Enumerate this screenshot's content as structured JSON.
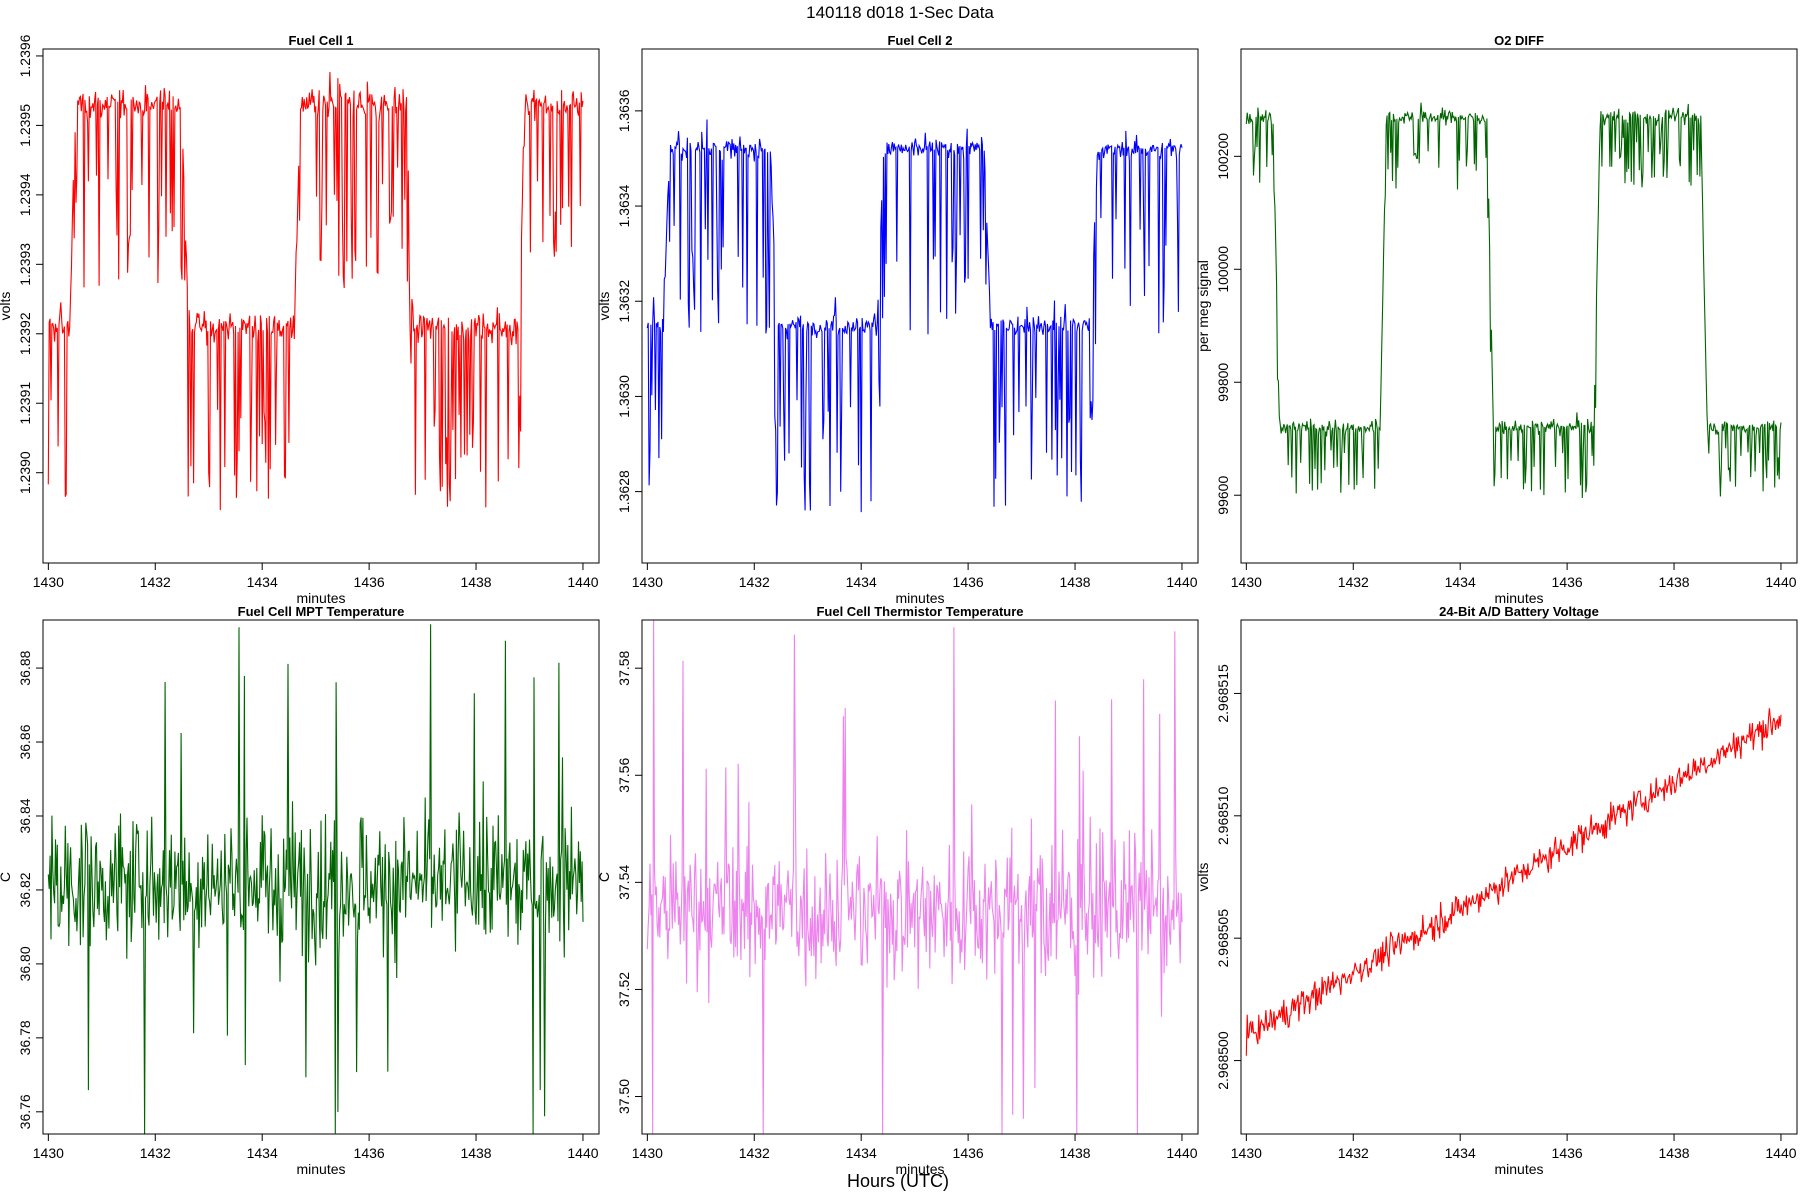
{
  "figure": {
    "title": "140118   d018   1-Sec Data",
    "outer_xlabel": "Hours (UTC)"
  },
  "chart_data": [
    {
      "type": "line",
      "title": "Fuel Cell 1",
      "xlabel": "minutes",
      "ylabel": "volts",
      "xlim": [
        1429.9,
        1440.3
      ],
      "ylim": [
        1.23887,
        1.23961
      ],
      "xticks": [
        1430,
        1432,
        1434,
        1436,
        1438,
        1440
      ],
      "yticks": [
        1.239,
        1.2391,
        1.2392,
        1.2393,
        1.2394,
        1.2395,
        1.2396
      ],
      "ytick_labels": [
        "1.2390",
        "1.2391",
        "1.2392",
        "1.2393",
        "1.2394",
        "1.2395",
        "1.2396"
      ],
      "color": "#ff0000",
      "pattern": {
        "kind": "square",
        "period": 4.2,
        "phase": 1430.4,
        "low": 1.23921,
        "high": 1.23953,
        "spike_amp": 0.00026,
        "noise": 2e-05
      }
    },
    {
      "type": "line",
      "title": "Fuel Cell 2",
      "xlabel": "minutes",
      "ylabel": "volts",
      "xlim": [
        1429.9,
        1440.3
      ],
      "ylim": [
        1.36265,
        1.36373
      ],
      "xticks": [
        1430,
        1432,
        1434,
        1436,
        1438,
        1440
      ],
      "yticks": [
        1.3628,
        1.363,
        1.3632,
        1.3634,
        1.3636
      ],
      "ytick_labels": [
        "1.3628",
        "1.3630",
        "1.3632",
        "1.3634",
        "1.3636"
      ],
      "color": "#0000ff",
      "pattern": {
        "kind": "square",
        "period": 4.0,
        "phase": 1430.3,
        "low": 1.36315,
        "high": 1.36352,
        "spike_amp": 0.0004,
        "noise": 2e-05
      }
    },
    {
      "type": "line",
      "title": "O2 DIFF",
      "xlabel": "minutes",
      "ylabel": "per meg signal",
      "xlim": [
        1429.9,
        1440.3
      ],
      "ylim": [
        99480,
        100390
      ],
      "xticks": [
        1430,
        1432,
        1434,
        1436,
        1438,
        1440
      ],
      "yticks": [
        99600,
        99800,
        100000,
        100200
      ],
      "ytick_labels": [
        "99600",
        "99800",
        "100000",
        "100200"
      ],
      "color": "#006400",
      "pattern": {
        "kind": "square",
        "period": 4.0,
        "phase": 1428.5,
        "low": 99720,
        "high": 100270,
        "spike_amp": 120,
        "noise": 12
      }
    },
    {
      "type": "line",
      "title": "Fuel Cell MPT Temperature",
      "xlabel": "minutes",
      "ylabel": "C",
      "xlim": [
        1429.9,
        1440.3
      ],
      "ylim": [
        36.754,
        36.893
      ],
      "xticks": [
        1430,
        1432,
        1434,
        1436,
        1438,
        1440
      ],
      "yticks": [
        36.76,
        36.78,
        36.8,
        36.82,
        36.84,
        36.86,
        36.88
      ],
      "ytick_labels": [
        "36.76",
        "36.78",
        "36.80",
        "36.82",
        "36.84",
        "36.86",
        "36.88"
      ],
      "color": "#006400",
      "pattern": {
        "kind": "noise",
        "mean": 36.822,
        "sigma": 0.018,
        "spike_max": 0.066
      }
    },
    {
      "type": "line",
      "title": "Fuel Cell Thermistor Temperature",
      "xlabel": "minutes",
      "ylabel": "C",
      "xlim": [
        1429.9,
        1440.3
      ],
      "ylim": [
        37.493,
        37.589
      ],
      "xticks": [
        1430,
        1432,
        1434,
        1436,
        1438,
        1440
      ],
      "yticks": [
        37.5,
        37.52,
        37.54,
        37.56,
        37.58
      ],
      "ytick_labels": [
        "37.50",
        "37.52",
        "37.54",
        "37.56",
        "37.58"
      ],
      "color": "#ee82ee",
      "pattern": {
        "kind": "noise",
        "mean": 37.535,
        "sigma": 0.013,
        "spike_max": 0.05
      }
    },
    {
      "type": "line",
      "title": "24-Bit A/D Battery Voltage",
      "xlabel": "minutes",
      "ylabel": "volts",
      "xlim": [
        1429.9,
        1440.3
      ],
      "ylim": [
        2.968497,
        2.968518
      ],
      "xticks": [
        1430,
        1432,
        1434,
        1436,
        1438,
        1440
      ],
      "yticks": [
        2.9685,
        2.968505,
        2.96851,
        2.968515
      ],
      "ytick_labels": [
        "2.968500",
        "2.968505",
        "2.968510",
        "2.968515"
      ],
      "color": "#ff0000",
      "pattern": {
        "kind": "trend",
        "start": 2.968501,
        "end": 2.968514,
        "sigma": 6e-07
      }
    }
  ]
}
